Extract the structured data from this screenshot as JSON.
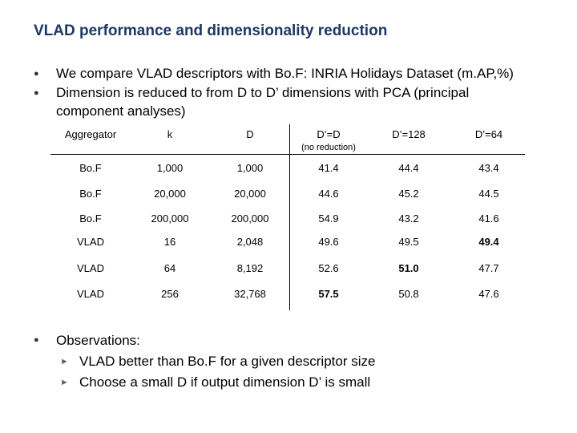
{
  "header": {
    "title": "VLAD performance and dimensionality reduction"
  },
  "bullets": [
    "We compare VLAD descriptors with Bo.F: INRIA Holidays Dataset (m.AP,%)",
    "Dimension is reduced to from D to D’ dimensions with PCA (principal component analyses)"
  ],
  "table": {
    "columns": [
      "Aggregator",
      "k",
      "D",
      "D’=D",
      "D’=128",
      "D’=64"
    ],
    "column_note": "(no reduction)",
    "rows": [
      [
        "Bo.F",
        "1,000",
        "1,000",
        "41.4",
        "44.4",
        "43.4"
      ],
      [
        "Bo.F",
        "20,000",
        "20,000",
        "44.6",
        "45.2",
        "44.5"
      ],
      [
        "Bo.F",
        "200,000",
        "200,000",
        "54.9",
        "43.2",
        "41.6"
      ],
      [
        "VLAD",
        "16",
        "2,048",
        "49.6",
        "49.5",
        "49.4"
      ],
      [
        "VLAD",
        "64",
        "8,192",
        "52.6",
        "51.0",
        "47.7"
      ],
      [
        "VLAD",
        "256",
        "32,768",
        "57.5",
        "50.8",
        "47.6"
      ]
    ]
  },
  "observations": {
    "title": "Observations:",
    "items": [
      "VLAD better than Bo.F for a given descriptor size",
      "Choose a small D if output dimension D’ is small"
    ]
  }
}
